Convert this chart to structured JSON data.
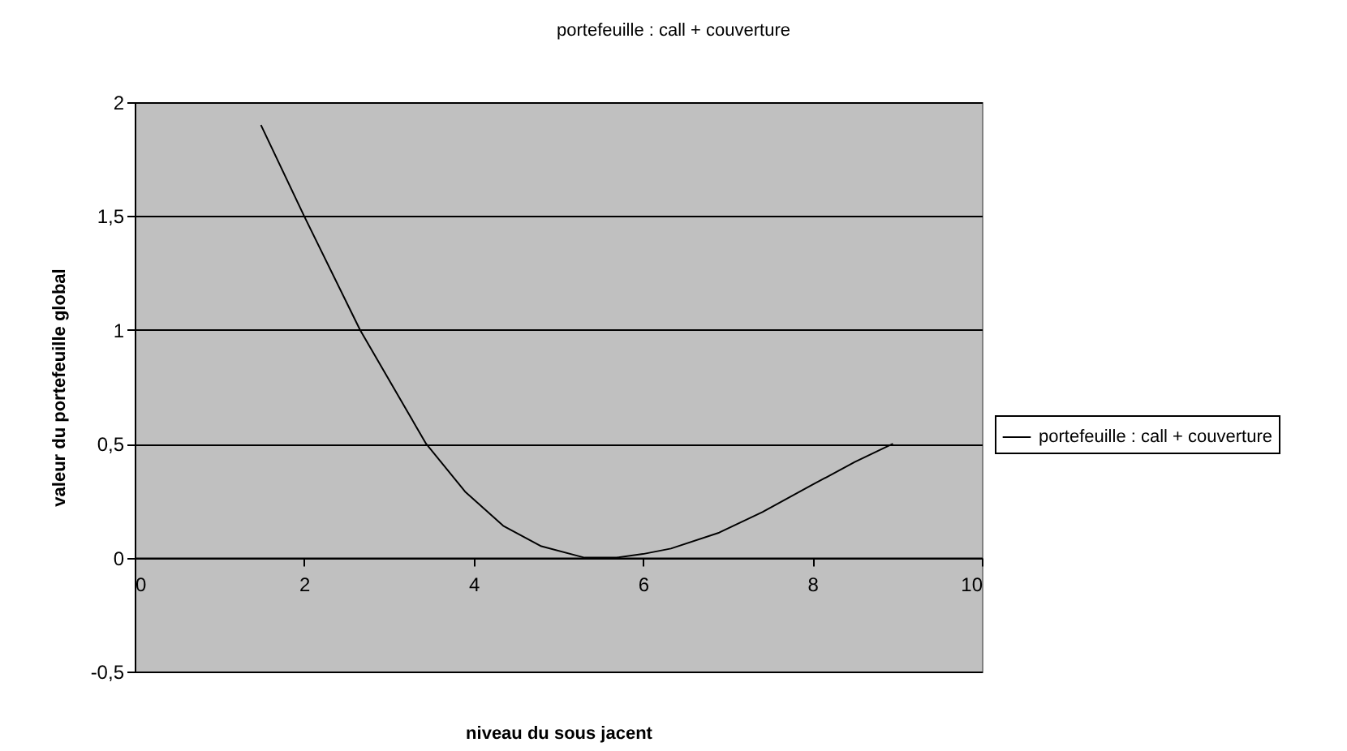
{
  "chart_data": {
    "type": "line",
    "title": "portefeuille : call + couverture",
    "xlabel": "niveau du sous jacent",
    "ylabel": "valeur du portefeuille global",
    "x": [
      1.49,
      2.0,
      2.66,
      3.44,
      3.9,
      4.35,
      4.8,
      5.31,
      5.69,
      6.0,
      6.33,
      6.9,
      7.41,
      8.0,
      8.5,
      8.95
    ],
    "series": [
      {
        "name": "portefeuille : call + couverture",
        "color": "#000000",
        "values": [
          1.9,
          1.5,
          1.0,
          0.5,
          0.29,
          0.14,
          0.05,
          0.0,
          0.0,
          0.016,
          0.04,
          0.11,
          0.2,
          0.32,
          0.42,
          0.5
        ]
      }
    ],
    "xlim": [
      0,
      10
    ],
    "xticks": [
      0,
      2,
      4,
      6,
      8,
      10
    ],
    "ylim": [
      -0.5,
      2
    ],
    "yticks": [
      {
        "value": -0.5,
        "label": "-0,5"
      },
      0,
      {
        "value": 0.5,
        "label": "0,5"
      },
      1,
      {
        "value": 1.5,
        "label": "1,5"
      },
      2
    ],
    "grid": "y",
    "legend": "right",
    "marker": "none",
    "line_style": "solid"
  }
}
